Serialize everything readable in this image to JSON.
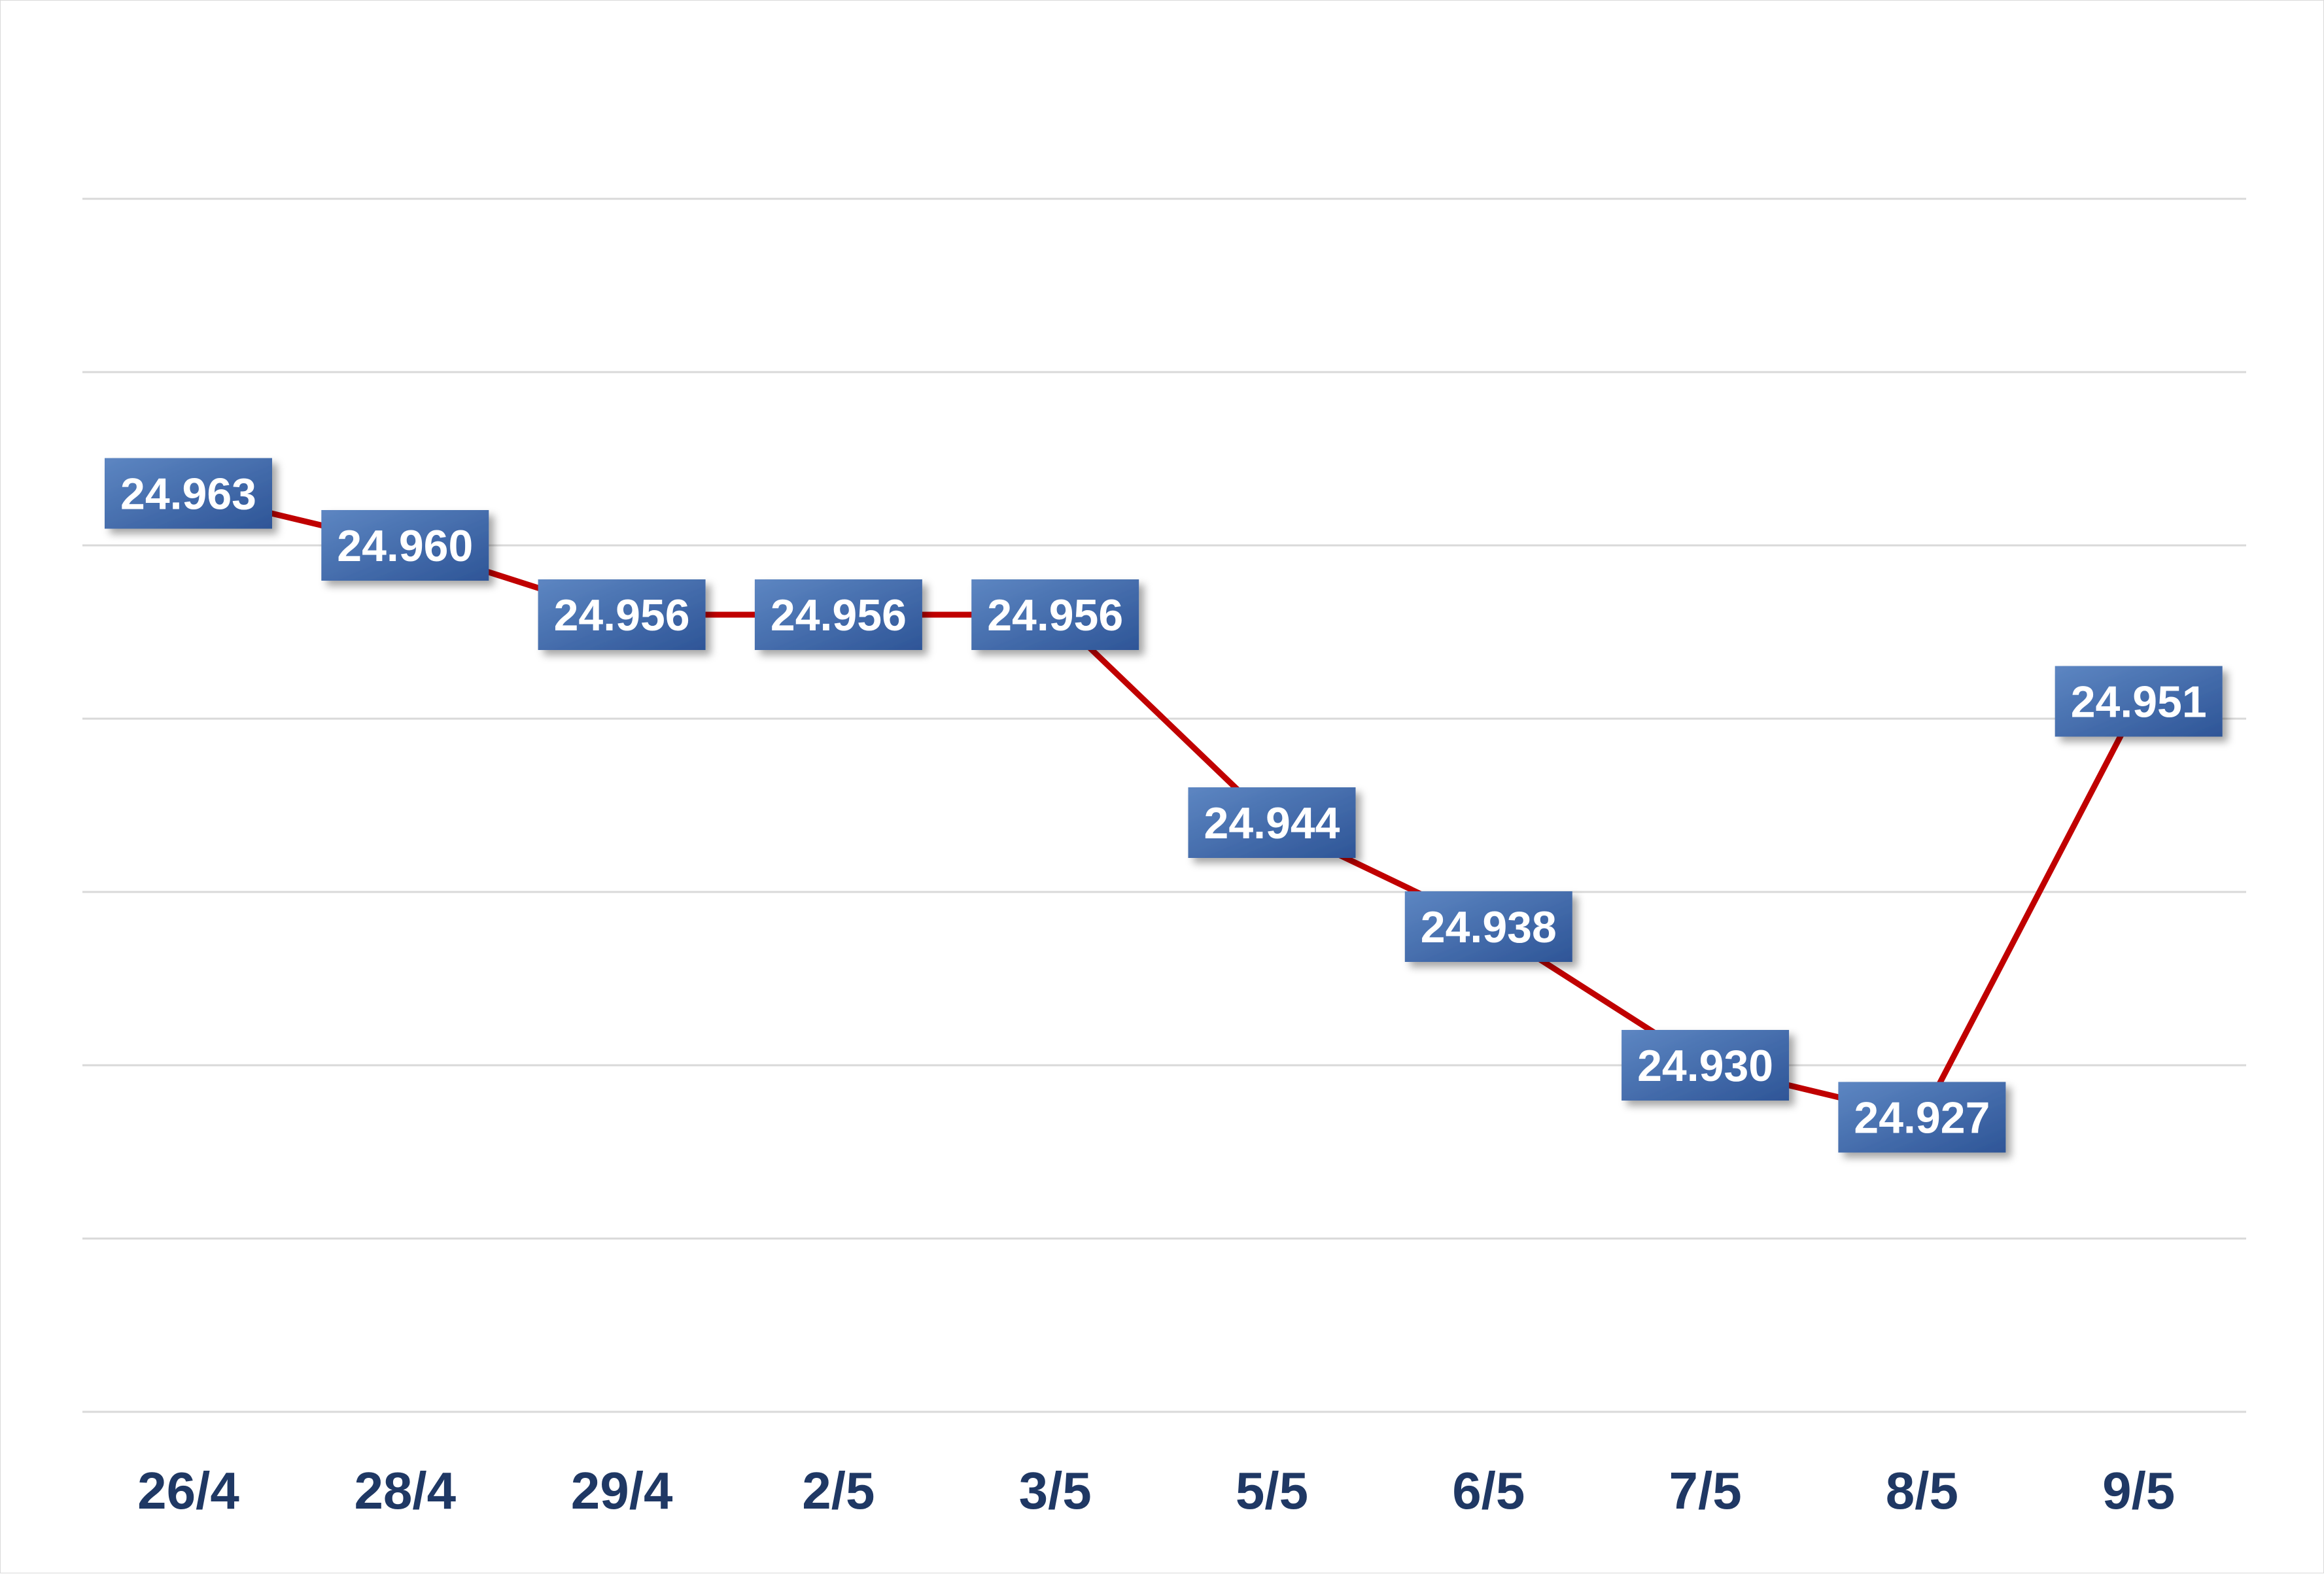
{
  "chart_data": {
    "type": "line",
    "categories": [
      "26/4",
      "28/4",
      "29/4",
      "2/5",
      "3/5",
      "5/5",
      "6/5",
      "7/5",
      "8/5",
      "9/5"
    ],
    "series": [
      {
        "values": [
          24.963,
          24.96,
          24.956,
          24.956,
          24.956,
          24.944,
          24.938,
          24.93,
          24.927,
          24.951
        ],
        "data_labels": [
          "24.963",
          "24.960",
          "24.956",
          "24.956",
          "24.956",
          "24.944",
          "24.938",
          "24.930",
          "24.927",
          "24.951"
        ]
      }
    ],
    "ylim": [
      24.91,
      24.98
    ],
    "grid": true,
    "legend": "none",
    "colors": {
      "line": "#c00000",
      "label_box_top": "#5d86c2",
      "label_box_bottom": "#2e5597",
      "tick_text": "#1f3864",
      "grid": "#d9d9d9"
    }
  }
}
